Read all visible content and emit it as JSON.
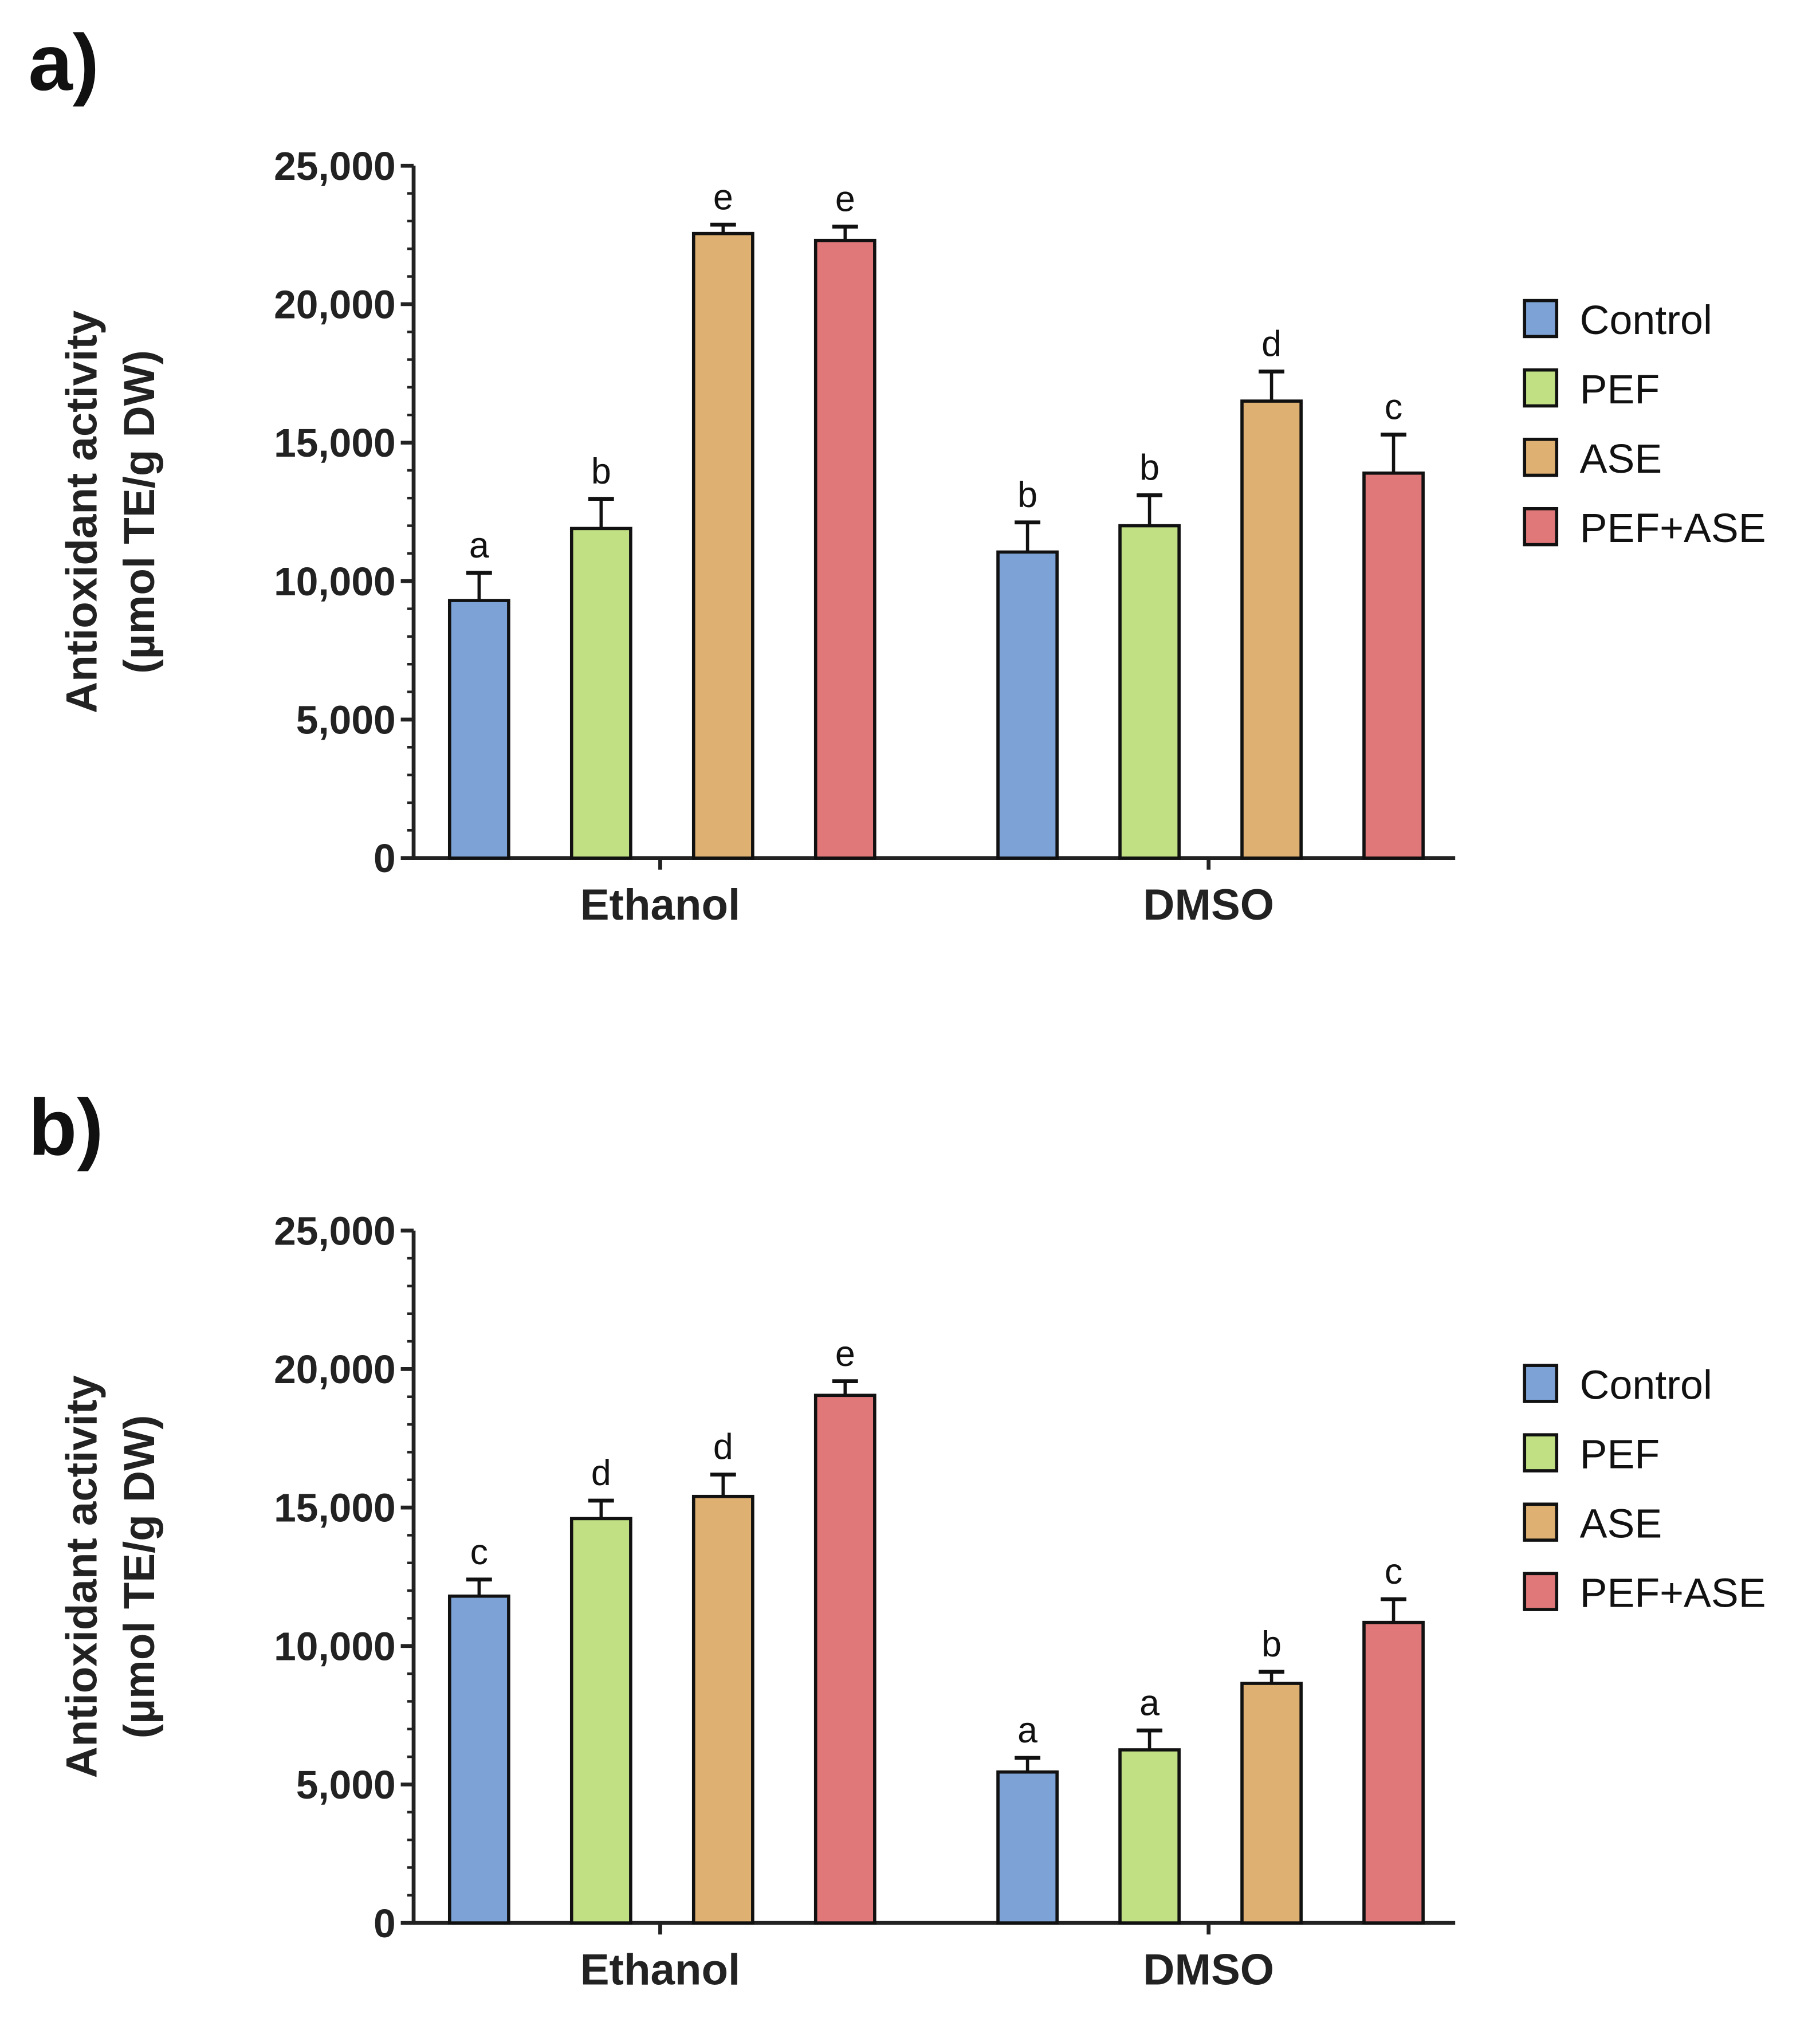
{
  "chart_data": [
    {
      "panel": "a)",
      "type": "bar",
      "ylabel": [
        "Antioxidant activity",
        "(µmol TE/g DW)"
      ],
      "categories": [
        "Ethanol",
        "DMSO"
      ],
      "ylim": [
        0,
        25000
      ],
      "yticks": [
        "0",
        "5,000",
        "10,000",
        "15,000",
        "20,000",
        "25,000"
      ],
      "legend_position": "right",
      "series": [
        {
          "name": "Control",
          "color": "#7da2d6",
          "values": [
            9300,
            11050
          ],
          "errors": [
            1000,
            1070
          ],
          "letters": [
            "a",
            "b"
          ]
        },
        {
          "name": "PEF",
          "color": "#c1e084",
          "values": [
            11900,
            12000
          ],
          "errors": [
            1070,
            1100
          ],
          "letters": [
            "b",
            "b"
          ]
        },
        {
          "name": "ASE",
          "color": "#deb071",
          "values": [
            22550,
            16500
          ],
          "errors": [
            320,
            1070
          ],
          "letters": [
            "e",
            "d"
          ]
        },
        {
          "name": "PEF+ASE",
          "color": "#e0787a",
          "values": [
            22300,
            13900
          ],
          "errors": [
            500,
            1390
          ],
          "letters": [
            "e",
            "c"
          ]
        }
      ]
    },
    {
      "panel": "b)",
      "type": "bar",
      "ylabel": [
        "Antioxidant activity",
        "(µmol TE/g DW)"
      ],
      "categories": [
        "Ethanol",
        "DMSO"
      ],
      "ylim": [
        0,
        25000
      ],
      "yticks": [
        "0",
        "5,000",
        "10,000",
        "15,000",
        "20,000",
        "25,000"
      ],
      "legend_position": "right",
      "series": [
        {
          "name": "Control",
          "color": "#7da2d6",
          "values": [
            11800,
            5450
          ],
          "errors": [
            600,
            510
          ],
          "letters": [
            "c",
            "a"
          ]
        },
        {
          "name": "PEF",
          "color": "#c1e084",
          "values": [
            14600,
            6250
          ],
          "errors": [
            650,
            700
          ],
          "letters": [
            "d",
            "a"
          ]
        },
        {
          "name": "ASE",
          "color": "#deb071",
          "values": [
            15400,
            8650
          ],
          "errors": [
            790,
            420
          ],
          "letters": [
            "d",
            "b"
          ]
        },
        {
          "name": "PEF+ASE",
          "color": "#e0787a",
          "values": [
            19050,
            10850
          ],
          "errors": [
            510,
            840
          ],
          "letters": [
            "e",
            "c"
          ]
        }
      ]
    }
  ]
}
